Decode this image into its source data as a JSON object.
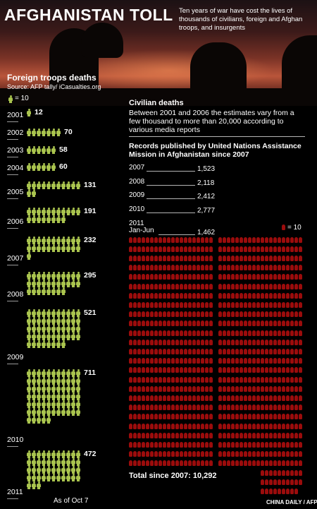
{
  "header": {
    "title": "AFGHANISTAN TOLL",
    "subtitle": "Ten years of war have cost the lives of thousands of civilians, foreign and Afghan troops, and insurgents"
  },
  "troops": {
    "heading": "Foreign troops deaths",
    "source": "Source: AFP tally/ iCasualties.org",
    "legend": "= 10",
    "footnote": "As of Oct 7"
  },
  "civilian": {
    "heading": "Civilian deaths",
    "estimate_text": "Between 2001 and 2006 the estimates vary from a few thousand to more than 20,000 according to various media reports",
    "records_heading": "Records published by United Nations Assistance Mission in Afghanistan since 2007",
    "legend": "= 10",
    "total": "Total since 2007: 10,292"
  },
  "credit": "CHINA DAILY / AFP",
  "colors": {
    "troop": "#a9c34e",
    "civilian": "#9b0c0c",
    "background": "#000000"
  },
  "chart_data": [
    {
      "type": "bar",
      "title": "Foreign troops deaths",
      "categories": [
        "2001",
        "2002",
        "2003",
        "2004",
        "2005",
        "2006",
        "2007",
        "2008",
        "2009",
        "2010",
        "2011"
      ],
      "values": [
        12,
        70,
        58,
        60,
        131,
        191,
        232,
        295,
        521,
        711,
        472
      ],
      "labels": [
        "12",
        "70",
        "58",
        "60",
        "131",
        "191",
        "232",
        "295",
        "521",
        "711",
        "472"
      ],
      "unit_per_icon": 10
    },
    {
      "type": "bar",
      "title": "Civilian deaths",
      "categories": [
        "2007",
        "2008",
        "2009",
        "2010",
        "2011 Jan-Jun"
      ],
      "values": [
        1523,
        2118,
        2412,
        2777,
        1462
      ],
      "labels": [
        "1,523",
        "2,118",
        "2,412",
        "2,777",
        "1,462"
      ],
      "unit_per_icon": 10,
      "total": 10292
    }
  ]
}
